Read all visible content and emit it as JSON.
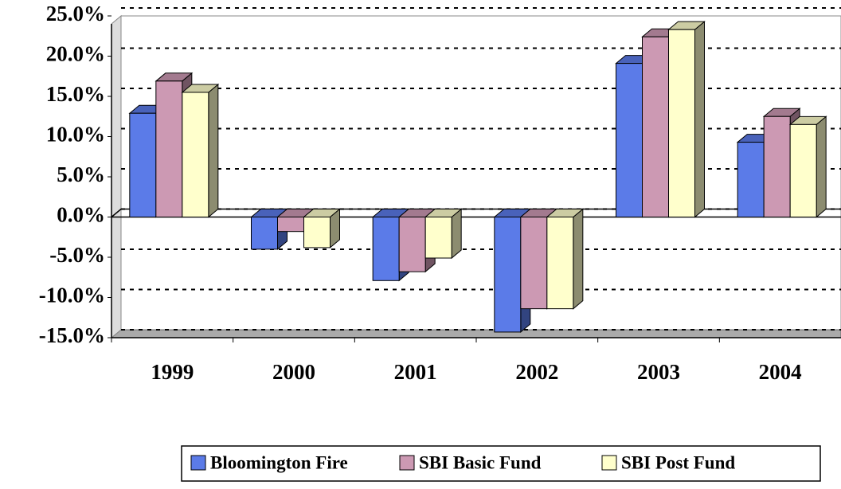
{
  "chart_data": {
    "type": "bar3d",
    "categories": [
      "1999",
      "2000",
      "2001",
      "2002",
      "2003",
      "2004"
    ],
    "series": [
      {
        "name": "Bloomington Fire",
        "color": "#5b7be8",
        "values": [
          12.9,
          -4.0,
          -7.9,
          -14.3,
          19.1,
          9.3
        ]
      },
      {
        "name": "SBI Basic Fund",
        "color": "#cc99b3",
        "values": [
          16.9,
          -1.8,
          -6.8,
          -11.4,
          22.4,
          12.5
        ]
      },
      {
        "name": "SBI Post Fund",
        "color": "#ffffcc",
        "values": [
          15.5,
          -3.8,
          -5.1,
          -11.4,
          23.3,
          11.5
        ]
      }
    ],
    "ylim": [
      -15,
      25
    ],
    "yticks": [
      {
        "value": 25,
        "label": "25.0%"
      },
      {
        "value": 20,
        "label": "20.0%"
      },
      {
        "value": 15,
        "label": "15.0%"
      },
      {
        "value": 10,
        "label": "10.0%"
      },
      {
        "value": 5,
        "label": "5.0%"
      },
      {
        "value": 0,
        "label": "0.0%"
      },
      {
        "value": -5,
        "label": "-5.0%"
      },
      {
        "value": -10,
        "label": "-10.0%"
      },
      {
        "value": -15,
        "label": "-15.0%"
      }
    ],
    "grid": true,
    "legend": "bottom"
  }
}
